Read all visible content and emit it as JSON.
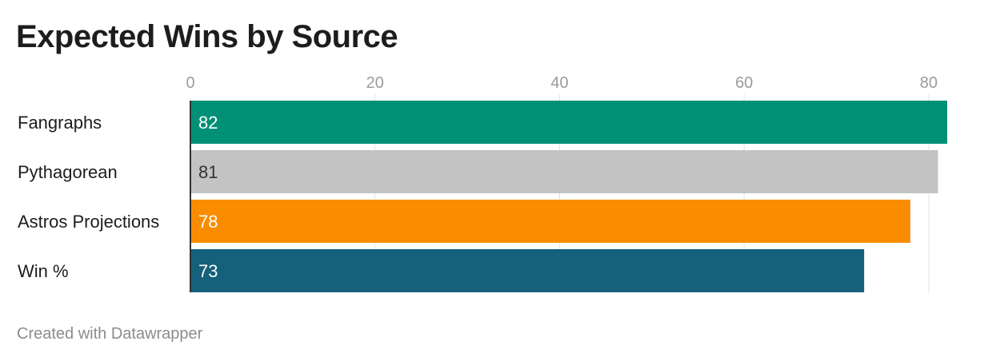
{
  "chart_data": {
    "type": "bar",
    "orientation": "horizontal",
    "title": "Expected Wins by Source",
    "categories": [
      "Fangraphs",
      "Pythagorean",
      "Astros Projections",
      "Win %"
    ],
    "values": [
      82,
      81,
      78,
      73
    ],
    "value_labels": [
      "82",
      "81",
      "78",
      "73"
    ],
    "colors": [
      "#009076",
      "#c3c3c3",
      "#fa8c00",
      "#15607a"
    ],
    "label_colors": [
      "#ffffff",
      "#333333",
      "#ffffff",
      "#ffffff"
    ],
    "xticks": [
      0,
      20,
      40,
      60,
      80
    ],
    "xlim": [
      0,
      82
    ],
    "xaxis_position": "top",
    "grid": true,
    "legend": "none"
  },
  "footer": {
    "credit": "Created with Datawrapper"
  }
}
